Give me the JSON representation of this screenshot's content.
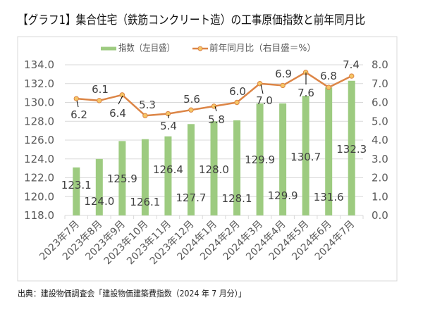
{
  "title": "【グラフ1】集合住宅（鉄筋コンクリート造）の工事原価指数と前年同月比",
  "source": "出典：建設物価調査会「建設物価建築費指数（2024 年 7 月分）」",
  "chart_data": {
    "type": "bar",
    "title": "【グラフ1】集合住宅（鉄筋コンクリート造）の工事原価指数と前年同月比",
    "xlabel": "",
    "ylabel": "",
    "categories": [
      "2023年7月",
      "2023年8月",
      "2023年9月",
      "2023年10月",
      "2023年11月",
      "2023年12月",
      "2024年1月",
      "2024年2月",
      "2024年3月",
      "2024年4月",
      "2024年5月",
      "2024年6月",
      "2024年7月"
    ],
    "series": [
      {
        "name": "指数（左目盛）",
        "type": "bar",
        "axis": "left",
        "values": [
          123.1,
          124.0,
          125.9,
          126.1,
          126.4,
          127.7,
          128.0,
          128.1,
          129.9,
          129.9,
          130.7,
          131.6,
          132.3
        ]
      },
      {
        "name": "前年同月比（右目盛＝%）",
        "type": "line",
        "axis": "right",
        "values": [
          6.2,
          6.1,
          6.4,
          5.3,
          5.4,
          5.6,
          5.8,
          6.0,
          7.0,
          6.9,
          7.6,
          6.8,
          7.4
        ]
      }
    ],
    "y_left": {
      "min": 118,
      "max": 134,
      "ticks": [
        "118.0",
        "120.0",
        "122.0",
        "124.0",
        "126.0",
        "128.0",
        "130.0",
        "132.0",
        "134.0"
      ]
    },
    "y_right": {
      "min": 0,
      "max": 8,
      "ticks": [
        "0.0",
        "1.0",
        "2.0",
        "3.0",
        "4.0",
        "5.0",
        "6.0",
        "7.0",
        "8.0"
      ]
    },
    "grid": true,
    "legend_position": "top",
    "data_labels": true,
    "colors": {
      "bar": "#9dcb80",
      "line": "#dc8546",
      "marker_fill": "#f6c666",
      "marker_stroke": "#dc8546"
    }
  }
}
